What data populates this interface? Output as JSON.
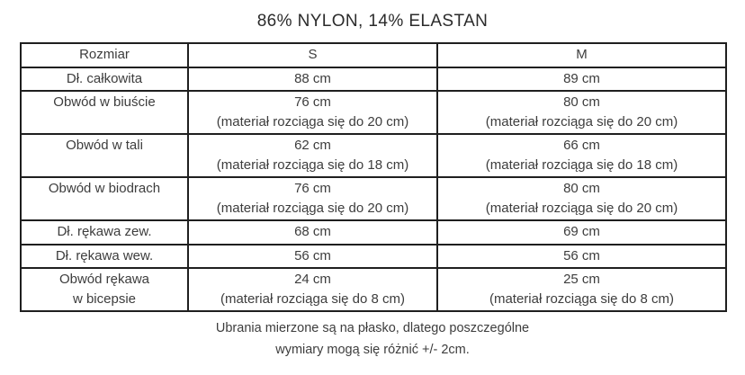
{
  "colors": {
    "background": "#ffffff",
    "text": "#3d3d3d",
    "title_text": "#2b2b2b",
    "border": "#1f1f1f"
  },
  "title": "86% NYLON, 14% ELASTAN",
  "table": {
    "headers": [
      "Rozmiar",
      "S",
      "M"
    ],
    "rows": [
      {
        "label": "Dł. całkowita",
        "label2": "",
        "s_value": "88 cm",
        "s_note": "",
        "m_value": "89 cm",
        "m_note": ""
      },
      {
        "label": "Obwód w biuście",
        "label2": "",
        "s_value": "76 cm",
        "s_note": "(materiał rozciąga się do 20 cm)",
        "m_value": "80 cm",
        "m_note": "(materiał rozciąga się do 20 cm)"
      },
      {
        "label": "Obwód w tali",
        "label2": "",
        "s_value": "62 cm",
        "s_note": "(materiał rozciąga się do 18 cm)",
        "m_value": "66 cm",
        "m_note": "(materiał rozciąga się do 18 cm)"
      },
      {
        "label": "Obwód w biodrach",
        "label2": "",
        "s_value": "76 cm",
        "s_note": "(materiał rozciąga się do 20 cm)",
        "m_value": "80 cm",
        "m_note": "(materiał rozciąga się do 20 cm)"
      },
      {
        "label": "Dł. rękawa zew.",
        "label2": "",
        "s_value": "68 cm",
        "s_note": "",
        "m_value": "69 cm",
        "m_note": ""
      },
      {
        "label": "Dł. rękawa wew.",
        "label2": "",
        "s_value": "56 cm",
        "s_note": "",
        "m_value": "56 cm",
        "m_note": ""
      },
      {
        "label": "Obwód rękawa",
        "label2": "w bicepsie",
        "s_value": "24 cm",
        "s_note": "(materiał rozciąga się do 8 cm)",
        "m_value": "25 cm",
        "m_note": "(materiał rozciąga się do 8 cm)"
      }
    ]
  },
  "footer": {
    "line1": "Ubrania mierzone są na płasko, dlatego poszczególne",
    "line2": "wymiary mogą się różnić +/- 2cm."
  }
}
